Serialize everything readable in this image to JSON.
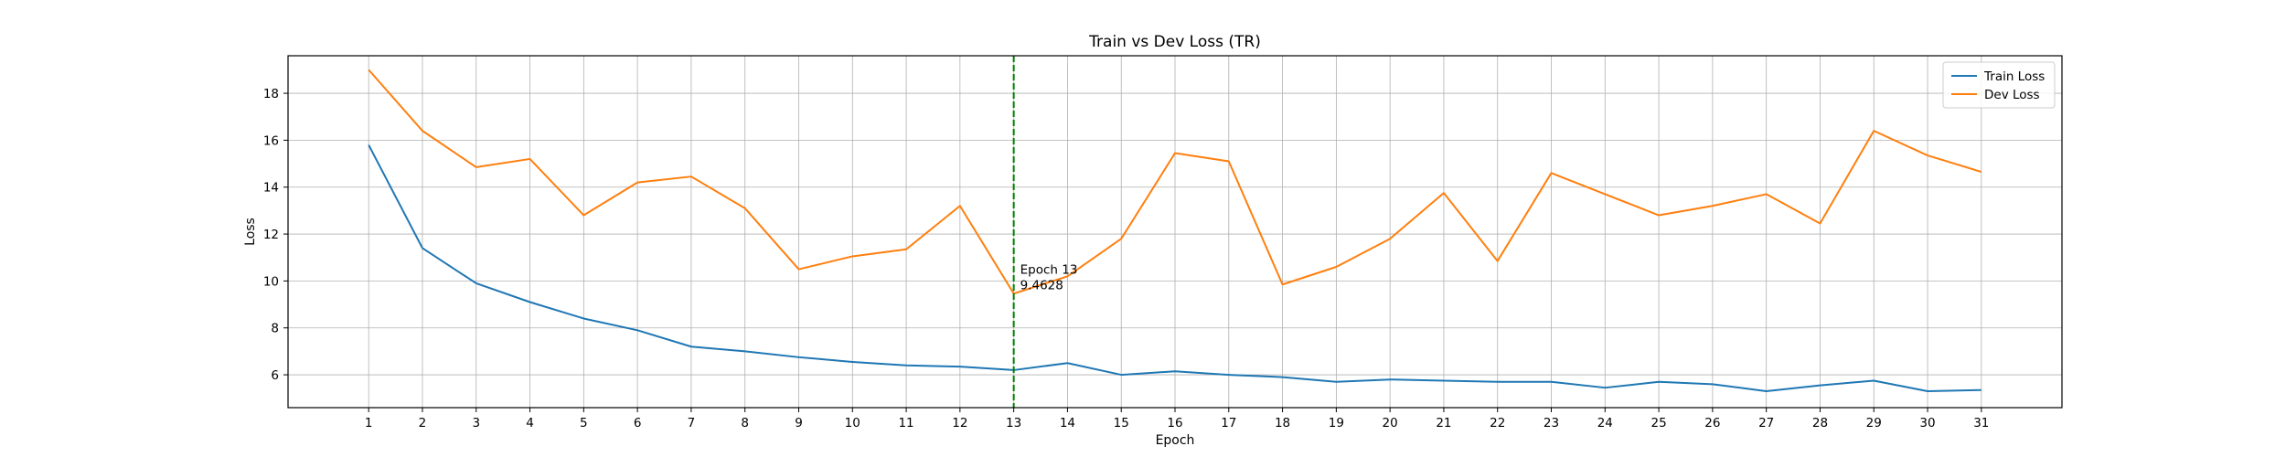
{
  "chart_data": {
    "type": "line",
    "title": "Train vs Dev Loss (TR)",
    "xlabel": "Epoch",
    "ylabel": "Loss",
    "x": [
      1,
      2,
      3,
      4,
      5,
      6,
      7,
      8,
      9,
      10,
      11,
      12,
      13,
      14,
      15,
      16,
      17,
      18,
      19,
      20,
      21,
      22,
      23,
      24,
      25,
      26,
      27,
      28,
      29,
      30,
      31
    ],
    "xlim": [
      -0.5,
      32.5
    ],
    "ylim": [
      4.6,
      19.6
    ],
    "yticks": [
      6,
      8,
      10,
      12,
      14,
      16,
      18
    ],
    "grid": true,
    "legend_position": "top-right",
    "series": [
      {
        "name": "Train Loss",
        "color": "#1f77b4",
        "values": [
          15.8,
          11.4,
          9.9,
          9.1,
          8.4,
          7.9,
          7.2,
          7.0,
          6.75,
          6.55,
          6.4,
          6.35,
          6.2,
          6.5,
          6.0,
          6.15,
          6.0,
          5.9,
          5.7,
          5.8,
          5.75,
          5.7,
          5.7,
          5.45,
          5.7,
          5.6,
          5.3,
          5.55,
          5.75,
          5.3,
          5.35
        ]
      },
      {
        "name": "Dev Loss",
        "color": "#ff7f0e",
        "values": [
          19.0,
          16.4,
          14.85,
          15.2,
          12.8,
          14.2,
          14.45,
          13.1,
          10.5,
          11.05,
          11.35,
          13.2,
          9.46,
          10.2,
          11.8,
          15.45,
          15.1,
          9.85,
          10.6,
          11.8,
          13.75,
          10.85,
          14.6,
          13.7,
          12.8,
          13.2,
          13.7,
          12.45,
          16.4,
          15.35,
          14.65
        ]
      }
    ],
    "annotations": [
      {
        "type": "vline",
        "x": 13,
        "color": "#008000",
        "style": "dashed",
        "label_lines": [
          "Epoch 13",
          "9.4628"
        ],
        "label_y": 10.0
      }
    ]
  }
}
